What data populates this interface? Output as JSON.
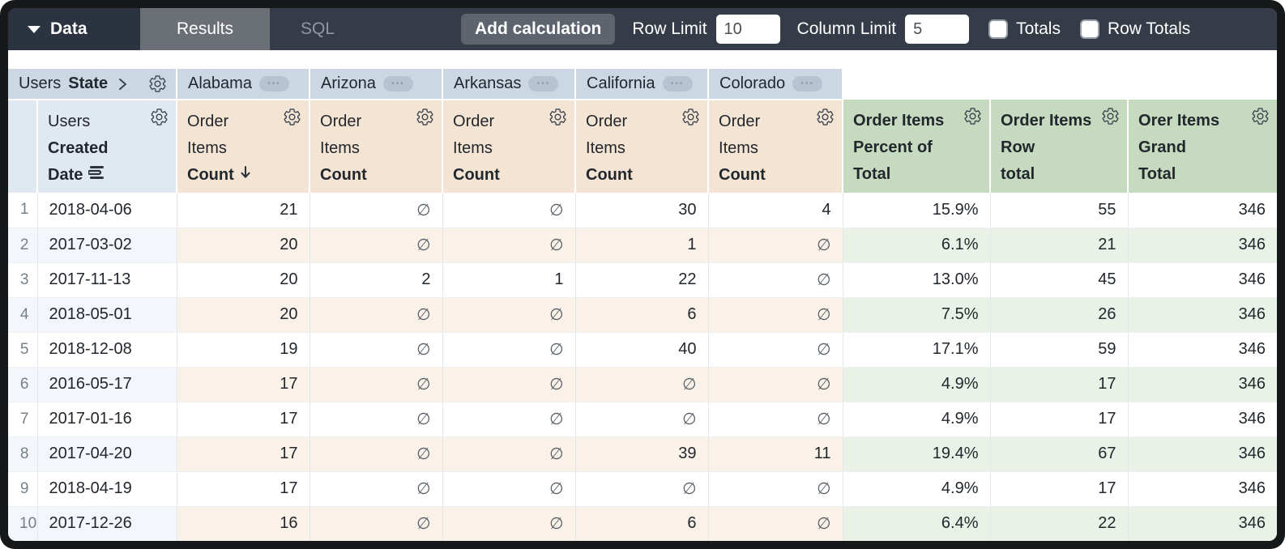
{
  "toolbar": {
    "data_menu": {
      "label": "Data"
    },
    "tabs": [
      {
        "label": "Results",
        "active": true
      },
      {
        "label": "SQL",
        "active": false
      }
    ],
    "add_calculation_label": "Add calculation",
    "row_limit": {
      "label": "Row Limit",
      "value": "10"
    },
    "column_limit": {
      "label": "Column Limit",
      "value": "5"
    },
    "totals_checkbox": {
      "label": "Totals",
      "checked": false
    },
    "row_totals_checkbox": {
      "label": "Row Totals",
      "checked": false
    }
  },
  "table": {
    "pivot_dimension": {
      "view": "Users",
      "field": "State"
    },
    "pivot_values": [
      "Alabama",
      "Arizona",
      "Arkansas",
      "California",
      "Colorado"
    ],
    "row_dimension": {
      "view": "Users",
      "field_line1": "Created",
      "field_line2": "Date"
    },
    "measure": {
      "view_line1": "Order",
      "view_line2": "Items",
      "field": "Count",
      "sorted_desc": true
    },
    "calc_columns": [
      {
        "line1": "Order Items",
        "line2": "Percent of",
        "line3": "Total"
      },
      {
        "line1": "Order Items",
        "line2": "Row",
        "line3": "total"
      },
      {
        "line1": "Orer Items",
        "line2": "Grand",
        "line3": "Total"
      }
    ],
    "null_symbol": "∅",
    "rows": [
      {
        "num": "1",
        "date": "2018-04-06",
        "counts": [
          "21",
          "∅",
          "∅",
          "30",
          "4"
        ],
        "percent_of_total": "15.9%",
        "row_total": "55",
        "grand_total": "346"
      },
      {
        "num": "2",
        "date": "2017-03-02",
        "counts": [
          "20",
          "∅",
          "∅",
          "1",
          "∅"
        ],
        "percent_of_total": "6.1%",
        "row_total": "21",
        "grand_total": "346"
      },
      {
        "num": "3",
        "date": "2017-11-13",
        "counts": [
          "20",
          "2",
          "1",
          "22",
          "∅"
        ],
        "percent_of_total": "13.0%",
        "row_total": "45",
        "grand_total": "346"
      },
      {
        "num": "4",
        "date": "2018-05-01",
        "counts": [
          "20",
          "∅",
          "∅",
          "6",
          "∅"
        ],
        "percent_of_total": "7.5%",
        "row_total": "26",
        "grand_total": "346"
      },
      {
        "num": "5",
        "date": "2018-12-08",
        "counts": [
          "19",
          "∅",
          "∅",
          "40",
          "∅"
        ],
        "percent_of_total": "17.1%",
        "row_total": "59",
        "grand_total": "346"
      },
      {
        "num": "6",
        "date": "2016-05-17",
        "counts": [
          "17",
          "∅",
          "∅",
          "∅",
          "∅"
        ],
        "percent_of_total": "4.9%",
        "row_total": "17",
        "grand_total": "346"
      },
      {
        "num": "7",
        "date": "2017-01-16",
        "counts": [
          "17",
          "∅",
          "∅",
          "∅",
          "∅"
        ],
        "percent_of_total": "4.9%",
        "row_total": "17",
        "grand_total": "346"
      },
      {
        "num": "8",
        "date": "2017-04-20",
        "counts": [
          "17",
          "∅",
          "∅",
          "39",
          "11"
        ],
        "percent_of_total": "19.4%",
        "row_total": "67",
        "grand_total": "346"
      },
      {
        "num": "9",
        "date": "2018-04-19",
        "counts": [
          "17",
          "∅",
          "∅",
          "∅",
          "∅"
        ],
        "percent_of_total": "4.9%",
        "row_total": "17",
        "grand_total": "346"
      },
      {
        "num": "10",
        "date": "2017-12-26",
        "counts": [
          "16",
          "∅",
          "∅",
          "6",
          "∅"
        ],
        "percent_of_total": "6.4%",
        "row_total": "22",
        "grand_total": "346"
      }
    ]
  },
  "colors": {
    "topbar_bg": "#353c48",
    "data_menu_bg": "#2c3340",
    "active_tab_bg": "#6b7077",
    "button_bg": "#5d646d",
    "pivot_header_bg": "#cbd7e3",
    "dimension_header_bg": "#e0e8f1",
    "measure_header_bg": "#f4e4d3",
    "calc_header_bg": "#c5dabe",
    "even_row_dimension_tint": "#f3f6fa",
    "even_row_measure_tint": "#faf1e9",
    "even_row_calc_tint": "#eaf2e7"
  }
}
